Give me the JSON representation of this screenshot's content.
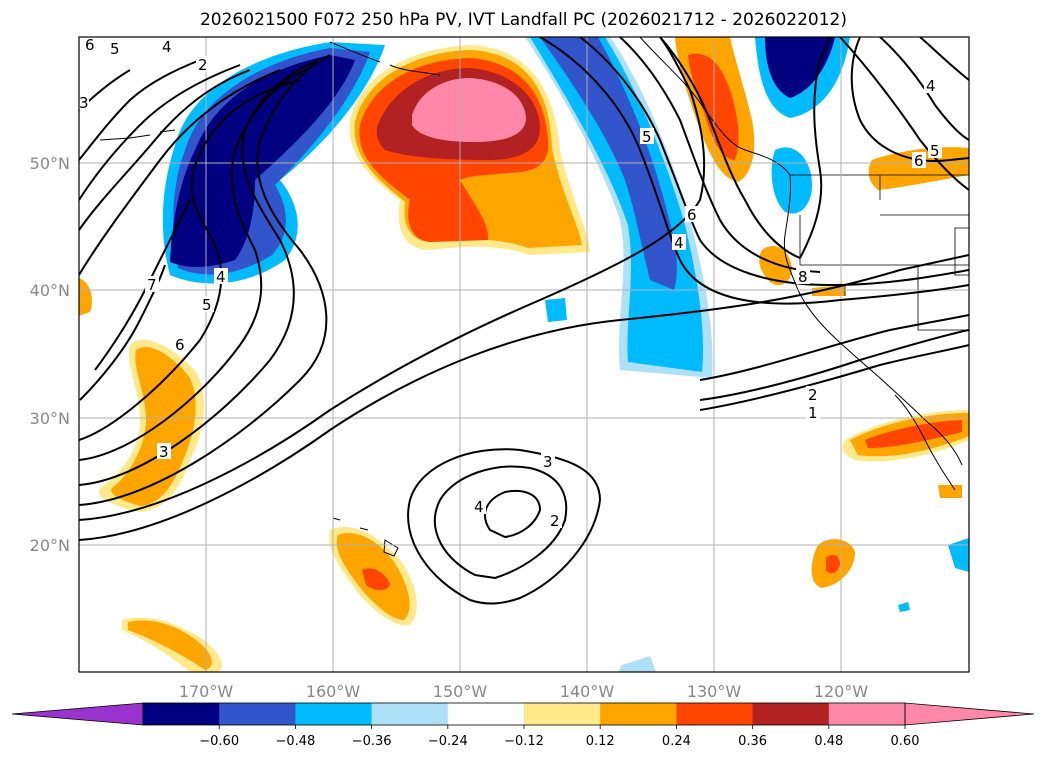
{
  "title": "2026021500 F072 250 hPa PV, IVT Landfall PC (2026021712 - 2026022012)",
  "map": {
    "lat_labels": [
      "50°N",
      "40°N",
      "30°N",
      "20°N"
    ],
    "lon_labels": [
      "170°W",
      "160°W",
      "150°W",
      "140°W",
      "130°W",
      "120°W"
    ],
    "contour_labels": [
      "6",
      "5",
      "4",
      "2",
      "3",
      "7",
      "5",
      "4",
      "6",
      "3",
      "5",
      "6",
      "4",
      "8",
      "2",
      "1",
      "3",
      "4",
      "2",
      "4",
      "5",
      "6"
    ]
  },
  "colorbar": {
    "ticks": [
      "−0.60",
      "−0.48",
      "−0.36",
      "−0.24",
      "−0.12",
      "0.12",
      "0.24",
      "0.36",
      "0.48",
      "0.60"
    ],
    "under_color": "#9933cc",
    "colors": [
      "#000080",
      "#3355cc",
      "#00bbff",
      "#aee0f8",
      "#ffffff",
      "#ffe98a",
      "#ffa500",
      "#ff4500",
      "#b22222",
      "#ff88aa"
    ],
    "over_color": "#ff88aa"
  }
}
